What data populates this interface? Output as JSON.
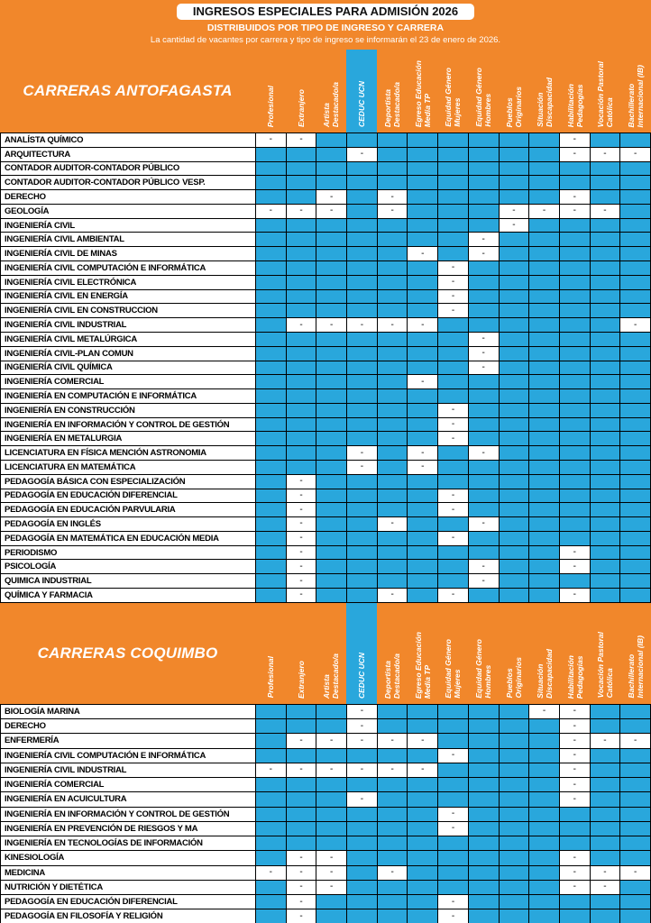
{
  "banner": {
    "title": "INGRESOS ESPECIALES PARA ADMISIÓN 2026",
    "subtitle": "DISTRIBUIDOS POR TIPO DE INGRESO Y CARRERA",
    "note": "La cantidad de vacantes por carrera y tipo de ingreso se informarán el 23 de enero de 2026."
  },
  "colors": {
    "orange": "#F1872B",
    "blue": "#29A7DC"
  },
  "legend": {
    "dash": "-"
  },
  "columns": [
    {
      "label": "Profesional",
      "highlight": false
    },
    {
      "label": "Extranjero",
      "highlight": false
    },
    {
      "label": "Artista\nDestacado/a",
      "highlight": false
    },
    {
      "label": "CEDUC UCN",
      "highlight": true
    },
    {
      "label": "Deportista\nDestacado/a",
      "highlight": false
    },
    {
      "label": "Egreso Educación\nMedia TP",
      "highlight": false
    },
    {
      "label": "Equidad Género\nMujeres",
      "highlight": false
    },
    {
      "label": "Equidad Género\nHombres",
      "highlight": false
    },
    {
      "label": "Pueblos\nOriginarios",
      "highlight": false
    },
    {
      "label": "Situación\nDiscapacidad",
      "highlight": false
    },
    {
      "label": "Habilitación\nPedagogías",
      "highlight": false
    },
    {
      "label": "Vocación Pastoral\nCatólica",
      "highlight": false
    },
    {
      "label": "Bachillerato\nInternacional (IB)",
      "highlight": false
    }
  ],
  "sections": [
    {
      "title": "CARRERAS ANTOFAGASTA",
      "rows": [
        {
          "name": "ANALÍSTA QUÍMICO",
          "cells": "--bbbbbbbb-bb"
        },
        {
          "name": "ARQUITECTURA",
          "cells": "bbb-bbbbbb---"
        },
        {
          "name": "CONTADOR AUDITOR-CONTADOR PÚBLICO",
          "cells": "bbbbbbbbbbbbb"
        },
        {
          "name": "CONTADOR AUDITOR-CONTADOR PÚBLICO",
          "bold": "VESP.",
          "cells": "bbbbbbbbbbbbb"
        },
        {
          "name": "DERECHO",
          "cells": "bb-b-bbbbb-bb"
        },
        {
          "name": "GEOLOGÍA",
          "cells": "---b-bbb----b"
        },
        {
          "name": "INGENIERÍA CIVIL",
          "cells": "bbbbbbbb-bbbb"
        },
        {
          "name": "INGENIERÍA CIVIL AMBIENTAL",
          "cells": "bbbbbbb-bbbbb"
        },
        {
          "name": "INGENIERÍA CIVIL DE MINAS",
          "cells": "bbbbb-b-bbbbb"
        },
        {
          "name": "INGENIERÍA CIVIL COMPUTACIÓN E INFORMÁTICA",
          "cells": "bbbbbb-bbbbbb"
        },
        {
          "name": "INGENIERÍA CIVIL ELECTRÓNICA",
          "cells": "bbbbbb-bbbbbb"
        },
        {
          "name": "INGENIERÍA CIVIL EN ENERGÍA",
          "cells": "bbbbbb-bbbbbb"
        },
        {
          "name": "INGENIERÍA CIVIL EN CONSTRUCCION",
          "cells": "bbbbbb-bbbbbb"
        },
        {
          "name": "INGENIERÍA CIVIL INDUSTRIAL",
          "cells": "b-----bbbbbb-"
        },
        {
          "name": "INGENIERÍA CIVIL METALÚRGICA",
          "cells": "bbbbbbb-bbbbb"
        },
        {
          "name": "INGENIERÍA CIVIL-PLAN COMUN",
          "cells": "bbbbbbb-bbbbb"
        },
        {
          "name": "INGENIERÍA CIVIL QUÍMICA",
          "cells": "bbbbbbb-bbbbb"
        },
        {
          "name": "INGENIERÍA COMERCIAL",
          "cells": "bbbbb-bbbbbbb"
        },
        {
          "name": "INGENIERÍA EN COMPUTACIÓN E INFORMÁTICA",
          "cells": "bbbbbbbbbbbbb"
        },
        {
          "name": "INGENIERÍA EN CONSTRUCCIÓN",
          "cells": "bbbbbb-bbbbbb"
        },
        {
          "name": "INGENIERÍA EN INFORMACIÓN Y CONTROL DE GESTIÓN",
          "cells": "bbbbbb-bbbbbb"
        },
        {
          "name": "INGENIERÍA EN METALURGIA",
          "cells": "bbbbbb-bbbbbb"
        },
        {
          "name": "LICENCIATURA EN FÍSICA MENCIÓN ASTRONOMIA",
          "cells": "bbb-b-b-bbbbb"
        },
        {
          "name": "LICENCIATURA EN MATEMÁTICA",
          "cells": "bbb-b-bbbbbbb"
        },
        {
          "name": "PEDAGOGÍA BÁSICA CON ESPECIALIZACIÓN",
          "cells": "b-bbbbbbbbbbb"
        },
        {
          "name": "PEDAGOGÍA EN EDUCACIÓN DIFERENCIAL",
          "cells": "b-bbbb-bbbbbb"
        },
        {
          "name": "PEDAGOGÍA EN EDUCACIÓN PARVULARIA",
          "cells": "b-bbbb-bbbbbb"
        },
        {
          "name": "PEDAGOGÍA EN INGLÉS",
          "cells": "b-bb-bb-bbbbb"
        },
        {
          "name": "PEDAGOGÍA EN MATEMÁTICA EN EDUCACIÓN MEDIA",
          "cells": "b-bbbb-bbbbbb"
        },
        {
          "name": "PERIODISMO",
          "cells": "b-bbbbbbbb-bb"
        },
        {
          "name": "PSICOLOGÍA",
          "cells": "b-bbbbb-bb-bb"
        },
        {
          "name": "QUIMICA INDUSTRIAL",
          "cells": "b-bbbbb-bbbbb"
        },
        {
          "name": "QUÍMICA Y FARMACIA",
          "cells": "b-bb-b-bbb-bb"
        }
      ]
    },
    {
      "title": "CARRERAS COQUIMBO",
      "rows": [
        {
          "name": "BIOLOGÍA MARINA",
          "cells": "bbb-bbbbb--bb"
        },
        {
          "name": "DERECHO",
          "cells": "bbb-bbbbbb-bb"
        },
        {
          "name": "ENFERMERÍA",
          "cells": "b-----bbbb---"
        },
        {
          "name": "INGENIERÍA CIVIL COMPUTACIÓN E INFORMÁTICA",
          "cells": "bbbbbb-bbb-bb"
        },
        {
          "name": "INGENIERÍA CIVIL INDUSTRIAL",
          "cells": "------bbbb-bb"
        },
        {
          "name": "INGENIERÍA COMERCIAL",
          "cells": "bbbbbbbbbb-bb"
        },
        {
          "name": "INGENIERÍA EN ACUICULTURA",
          "cells": "bbb-bbbbbb-bb"
        },
        {
          "name": "INGENIERÍA EN INFORMACIÓN Y CONTROL DE GESTIÓN",
          "cells": "bbbbbb-bbbbbb"
        },
        {
          "name": "INGENIERÍA EN PREVENCIÓN DE RIESGOS Y MA",
          "cells": "bbbbbb-bbbbbb"
        },
        {
          "name": "INGENIERÍA EN TECNOLOGÍAS DE INFORMACIÓN",
          "cells": "bbbbbbbbbbbbb"
        },
        {
          "name": "KINESIOLOGÍA",
          "cells": "b--bbbbbbb-bb"
        },
        {
          "name": "MEDICINA",
          "cells": "---b-bbbbb---"
        },
        {
          "name": "NUTRICIÓN Y DIETÉTICA",
          "cells": "b--bbbbbbb--b"
        },
        {
          "name": "PEDAGOGÍA EN EDUCACIÓN DIFERENCIAL",
          "cells": "b-bbbb-bbbbbb"
        },
        {
          "name": "PEDAGOGÍA EN FILOSOFÍA Y RELIGIÓN",
          "cells": "b-bbbb-bbbbbb"
        }
      ]
    }
  ]
}
